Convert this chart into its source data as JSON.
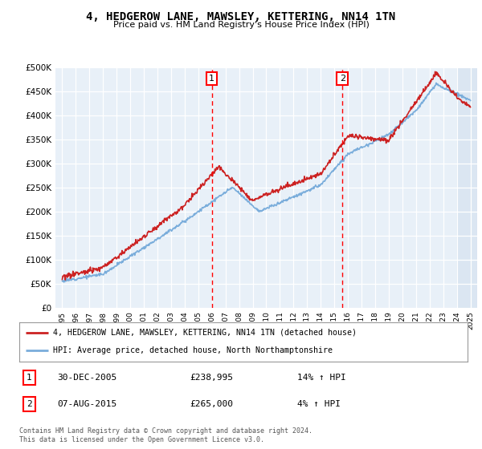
{
  "title": "4, HEDGEROW LANE, MAWSLEY, KETTERING, NN14 1TN",
  "subtitle": "Price paid vs. HM Land Registry's House Price Index (HPI)",
  "red_label": "4, HEDGEROW LANE, MAWSLEY, KETTERING, NN14 1TN (detached house)",
  "blue_label": "HPI: Average price, detached house, North Northamptonshire",
  "marker1": {
    "label": "1",
    "year": 2005.99,
    "date": "30-DEC-2005",
    "price": "£238,995",
    "hpi": "14% ↑ HPI"
  },
  "marker2": {
    "label": "2",
    "year": 2015.6,
    "date": "07-AUG-2015",
    "price": "£265,000",
    "hpi": "4% ↑ HPI"
  },
  "footer": "Contains HM Land Registry data © Crown copyright and database right 2024.\nThis data is licensed under the Open Government Licence v3.0.",
  "ylim": [
    0,
    500000
  ],
  "xlim": [
    1994.5,
    2025.5
  ],
  "background_color": "#ffffff",
  "plot_bg": "#e8f0f8",
  "shade_start": 2024.0,
  "yticks": [
    0,
    50000,
    100000,
    150000,
    200000,
    250000,
    300000,
    350000,
    400000,
    450000,
    500000
  ],
  "xticks": [
    1995,
    1996,
    1997,
    1998,
    1999,
    2000,
    2001,
    2002,
    2003,
    2004,
    2005,
    2006,
    2007,
    2008,
    2009,
    2010,
    2011,
    2012,
    2013,
    2014,
    2015,
    2016,
    2017,
    2018,
    2019,
    2020,
    2021,
    2022,
    2023,
    2024,
    2025
  ]
}
